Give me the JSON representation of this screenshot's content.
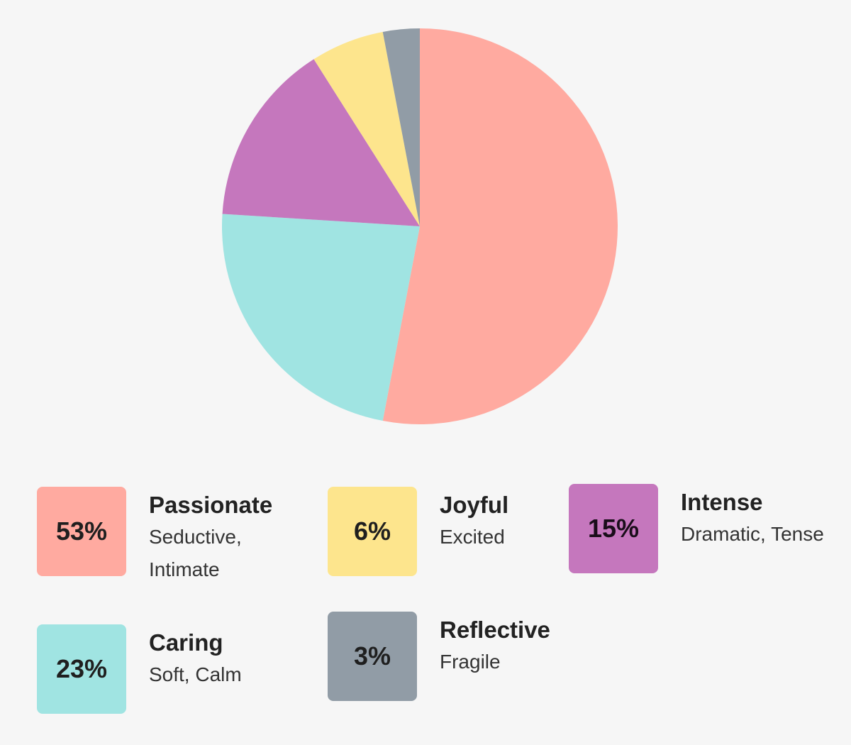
{
  "chart_data": {
    "type": "pie",
    "slices": [
      {
        "label": "Passionate",
        "description": "Seductive, Intimate",
        "value": 53,
        "display": "53%",
        "color": "#ffaaa0"
      },
      {
        "label": "Caring",
        "description": "Soft, Calm",
        "value": 23,
        "display": "23%",
        "color": "#a0e4e2"
      },
      {
        "label": "Intense",
        "description": "Dramatic, Tense",
        "value": 15,
        "display": "15%",
        "color": "#c577bd"
      },
      {
        "label": "Joyful",
        "description": "Excited",
        "value": 6,
        "display": "6%",
        "color": "#fde58d"
      },
      {
        "label": "Reflective",
        "description": "Fragile",
        "value": 3,
        "display": "3%",
        "color": "#919ca6"
      }
    ],
    "start_angle": "top",
    "direction": "clockwise"
  },
  "legend": [
    {
      "name": "Passionate",
      "desc": "Seductive, Intimate",
      "pct": "53%",
      "color": "#ffaaa0"
    },
    {
      "name": "Joyful",
      "desc": "Excited",
      "pct": "6%",
      "color": "#fde58d"
    },
    {
      "name": "Intense",
      "desc": "Dramatic, Tense",
      "pct": "15%",
      "color": "#c577bd"
    },
    {
      "name": "Caring",
      "desc": "Soft, Calm",
      "pct": "23%",
      "color": "#a0e4e2"
    },
    {
      "name": "Reflective",
      "desc": "Fragile",
      "pct": "3%",
      "color": "#919ca6"
    }
  ]
}
